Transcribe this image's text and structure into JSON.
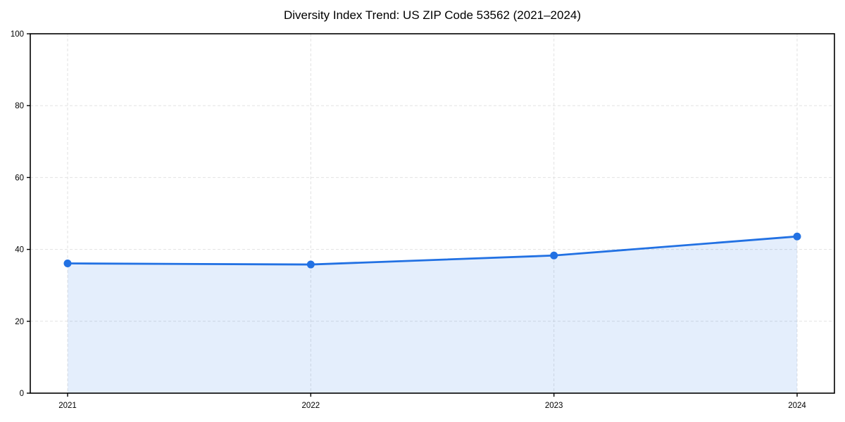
{
  "figure": {
    "background": "#ffffff"
  },
  "chart_data": {
    "type": "area",
    "title": "Diversity Index Trend: US ZIP Code 53562 (2021–2024)",
    "x": [
      "2021",
      "2022",
      "2023",
      "2024"
    ],
    "series": [
      {
        "name": "Diversity Index",
        "values": [
          36.1,
          35.8,
          38.3,
          43.6
        ]
      }
    ],
    "xlabel": "",
    "ylabel": "",
    "ylim": [
      0,
      100
    ],
    "yticks": [
      0,
      20,
      40,
      60,
      80,
      100
    ],
    "grid": true,
    "grid_linestyle": "dashed",
    "legend_position": "none",
    "colors": {
      "line": "#2271e3",
      "marker": "#2271e3",
      "area": "#2271e3",
      "grid": "#e2e2e2",
      "spine": "#000000",
      "tick_label": "#000000",
      "title": "#000000"
    },
    "area_opacity": 0.12,
    "marker_style": "circle"
  }
}
